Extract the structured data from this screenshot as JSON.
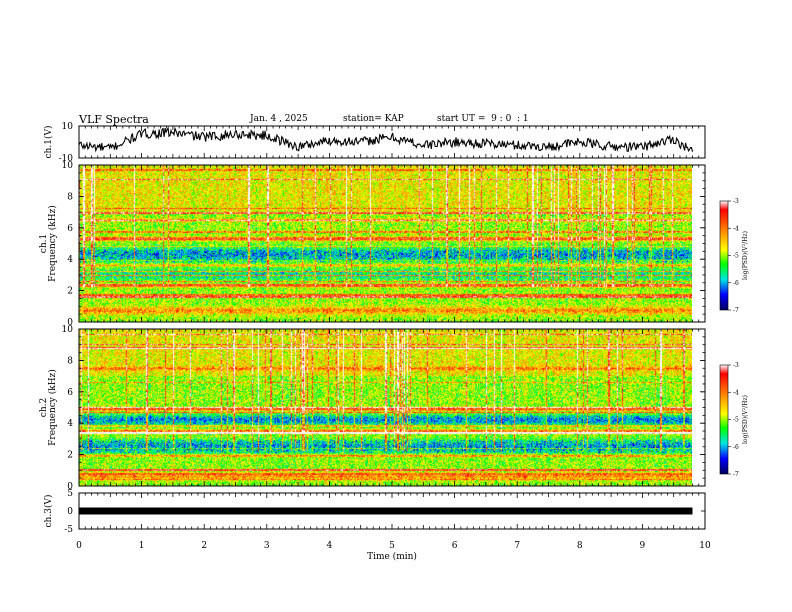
{
  "header": {
    "title": "VLF Spectra",
    "date": "Jan. 4 , 2025",
    "station": "station= KAP",
    "start_ut": "start UT =  9 : 0  : 1"
  },
  "chart_data": [
    {
      "type": "line",
      "panel": "ch1-waveform",
      "ylabel": "ch.1(V)",
      "ylim": [
        -10,
        10
      ],
      "yticks": [
        10,
        -10
      ],
      "x": [
        0,
        0.5,
        1,
        1.5,
        2,
        2.5,
        3,
        3.5,
        4,
        4.5,
        5,
        5.5,
        6,
        6.5,
        7,
        7.5,
        8,
        8.5,
        9,
        9.5,
        9.8
      ],
      "y": [
        -2,
        -4,
        5,
        6,
        3,
        5,
        4,
        -3,
        1,
        0,
        3,
        -2,
        0,
        -1,
        -2,
        -3,
        0,
        -3,
        -3,
        2,
        -6
      ]
    },
    {
      "type": "heatmap",
      "panel": "ch1-spectrogram",
      "ylabel": "ch.1\nFrequency (kHz)",
      "ylim": [
        0,
        10
      ],
      "yticks": [
        0,
        2,
        4,
        6,
        8,
        10
      ],
      "colorbar": {
        "label": "log(PSD)(V²/Hz)",
        "range": [
          -7,
          -3
        ],
        "ticks": [
          -3,
          -4,
          -5,
          -6,
          -7
        ]
      }
    },
    {
      "type": "heatmap",
      "panel": "ch2-spectrogram",
      "ylabel": "ch.2\nFrequency (kHz)",
      "ylim": [
        0,
        10
      ],
      "yticks": [
        0,
        2,
        4,
        6,
        8,
        10
      ],
      "colorbar": {
        "label": "log(PSD)(V²/Hz)",
        "range": [
          -7,
          -3
        ],
        "ticks": [
          -3,
          -4,
          -5,
          -6,
          -7
        ]
      }
    },
    {
      "type": "line",
      "panel": "ch3-waveform",
      "ylabel": "ch.3(V)",
      "ylim": [
        -5,
        5
      ],
      "yticks": [
        5,
        0,
        -5
      ],
      "x": [
        0,
        9.8
      ],
      "y": [
        0,
        0
      ]
    }
  ],
  "x_axis": {
    "label": "Time (min)",
    "range": [
      0,
      10
    ],
    "ticks": [
      0,
      1,
      2,
      3,
      4,
      5,
      6,
      7,
      8,
      9,
      10
    ],
    "data_end": 9.8
  }
}
